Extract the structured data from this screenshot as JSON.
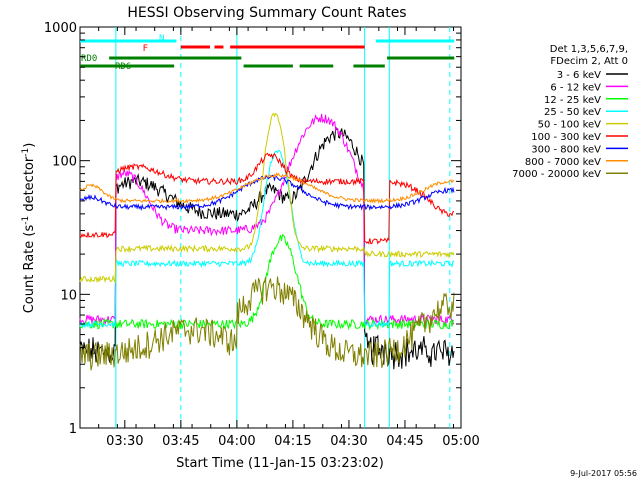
{
  "chart_data": {
    "type": "line",
    "title": "HESSI Observing Summary Count Rates",
    "xlabel": "Start Time (11-Jan-15 03:23:02)",
    "ylabel_main": "Count Rate (s",
    "ylabel_sup1": "-1",
    "ylabel_mid": " detector",
    "ylabel_sup2": "-1",
    "ylabel_end": ")",
    "xlim": [
      3.3,
      5.0
    ],
    "ylim": [
      1,
      1000
    ],
    "yscale": "log",
    "xticks": [
      {
        "v": 3.5,
        "label": "03:30"
      },
      {
        "v": 3.75,
        "label": "03:45"
      },
      {
        "v": 4.0,
        "label": "04:00"
      },
      {
        "v": 4.25,
        "label": "04:15"
      },
      {
        "v": 4.5,
        "label": "04:30"
      },
      {
        "v": 4.75,
        "label": "04:45"
      },
      {
        "v": 5.0,
        "label": "05:00"
      }
    ],
    "yticks": [
      {
        "v": 1,
        "label": "1"
      },
      {
        "v": 10,
        "label": "10"
      },
      {
        "v": 100,
        "label": "100"
      },
      {
        "v": 1000,
        "label": "1000"
      }
    ],
    "legend_header": [
      "Det 1,3,5,6,7,9,",
      "FDecim 2, Att 0"
    ],
    "legend_position": "right",
    "series": [
      {
        "name": "3 - 6 keV",
        "color": "#000000"
      },
      {
        "name": "6 - 12 keV",
        "color": "#ff00ff"
      },
      {
        "name": "12 - 25 keV",
        "color": "#00ff00"
      },
      {
        "name": "25 - 50 keV",
        "color": "#00ffff"
      },
      {
        "name": "50 - 100 keV",
        "color": "#cccc00"
      },
      {
        "name": "100 - 300 keV",
        "color": "#ff0000"
      },
      {
        "name": "300 - 800 keV",
        "color": "#0000ff"
      },
      {
        "name": "800 - 7000 keV",
        "color": "#ff8c00"
      },
      {
        "name": "7000 - 20000 keV",
        "color": "#808000"
      }
    ],
    "flags": [
      {
        "label": "N",
        "color": "#00ffff",
        "segments": [
          [
            3.3,
            3.73
          ],
          [
            4.62,
            4.97
          ]
        ]
      },
      {
        "label": "F",
        "color": "#ff0000",
        "segments": [
          [
            3.75,
            3.88
          ],
          [
            3.9,
            3.94
          ],
          [
            3.97,
            4.57
          ]
        ]
      },
      {
        "label": "RD0",
        "color": "#008000",
        "segments": [
          [
            3.43,
            4.02
          ],
          [
            4.67,
            4.97
          ]
        ]
      },
      {
        "label": "RD6",
        "color": "#008000",
        "segments": [
          [
            3.3,
            3.72
          ],
          [
            4.03,
            4.25
          ],
          [
            4.28,
            4.43
          ],
          [
            4.52,
            4.66
          ]
        ]
      }
    ],
    "vlines": [
      {
        "x": 3.46,
        "color": "#00ffff",
        "dash": false
      },
      {
        "x": 3.75,
        "color": "#00ffff",
        "dash": true
      },
      {
        "x": 4.0,
        "color": "#00ffff",
        "dash": false
      },
      {
        "x": 4.57,
        "color": "#00ffff",
        "dash": false
      },
      {
        "x": 4.68,
        "color": "#00ffff",
        "dash": false
      },
      {
        "x": 4.95,
        "color": "#00ffff",
        "dash": true
      }
    ]
  },
  "footer_date": "9-Jul-2017 05:56"
}
